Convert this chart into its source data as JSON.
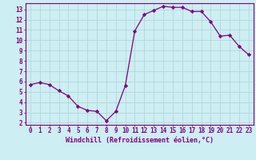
{
  "x": [
    0,
    1,
    2,
    3,
    4,
    5,
    6,
    7,
    8,
    9,
    10,
    11,
    12,
    13,
    14,
    15,
    16,
    17,
    18,
    19,
    20,
    21,
    22,
    23
  ],
  "y": [
    5.7,
    5.9,
    5.7,
    5.1,
    4.6,
    3.6,
    3.2,
    3.1,
    2.2,
    3.1,
    5.6,
    10.9,
    12.5,
    12.9,
    13.3,
    13.2,
    13.2,
    12.8,
    12.8,
    11.8,
    10.4,
    10.5,
    9.4,
    8.6
  ],
  "line_color": "#800080",
  "marker": "D",
  "marker_size": 2.2,
  "bg_color": "#cdeef2",
  "grid_color": "#b0d8dc",
  "axis_color": "#800080",
  "xlabel": "Windchill (Refroidissement éolien,°C)",
  "xlim": [
    -0.5,
    23.5
  ],
  "ylim": [
    1.8,
    13.6
  ],
  "yticks": [
    2,
    3,
    4,
    5,
    6,
    7,
    8,
    9,
    10,
    11,
    12,
    13
  ],
  "xticks": [
    0,
    1,
    2,
    3,
    4,
    5,
    6,
    7,
    8,
    9,
    10,
    11,
    12,
    13,
    14,
    15,
    16,
    17,
    18,
    19,
    20,
    21,
    22,
    23
  ],
  "tick_font_size": 5.5,
  "label_font_size": 6.0
}
